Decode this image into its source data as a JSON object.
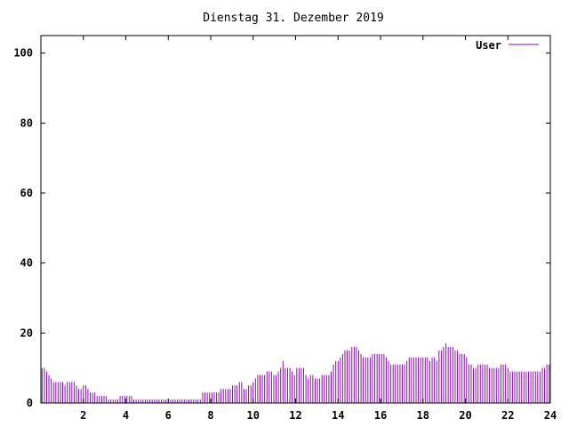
{
  "chart_data": {
    "type": "bar",
    "title": "Dienstag 31. Dezember 2019",
    "xlabel": "",
    "ylabel": "",
    "xlim": [
      0,
      24
    ],
    "ylim": [
      0,
      105
    ],
    "x_ticks": [
      2,
      4,
      6,
      8,
      10,
      12,
      14,
      16,
      18,
      20,
      22,
      24
    ],
    "x_tick_labels": [
      "2",
      "4",
      "6",
      "8",
      "10",
      "12",
      "14",
      "16",
      "18",
      "20",
      "22",
      "24"
    ],
    "y_ticks": [
      0,
      20,
      40,
      60,
      80,
      100
    ],
    "y_tick_labels": [
      "0",
      "20",
      "40",
      "60",
      "80",
      "100"
    ],
    "grid": false,
    "legend_position": "top-right",
    "bar_color": "#9400d3",
    "series": [
      {
        "name": "User",
        "values": [
          10,
          10,
          9,
          8,
          7,
          6,
          6,
          6,
          6,
          6,
          5,
          6,
          6,
          6,
          6,
          5,
          4,
          4,
          5,
          5,
          4,
          3,
          3,
          3,
          2,
          2,
          2,
          2,
          2,
          1,
          1,
          1,
          1,
          1,
          2,
          2,
          2,
          2,
          2,
          2,
          1,
          1,
          1,
          1,
          1,
          1,
          1,
          1,
          1,
          1,
          1,
          1,
          1,
          1,
          1,
          1,
          1,
          1,
          1,
          1,
          1,
          1,
          1,
          1,
          1,
          1,
          1,
          1,
          1,
          1,
          3,
          3,
          3,
          3,
          3,
          3,
          3,
          3,
          4,
          4,
          4,
          4,
          4,
          5,
          5,
          5,
          6,
          6,
          4,
          4,
          5,
          5,
          6,
          7,
          8,
          8,
          8,
          8,
          9,
          9,
          9,
          8,
          8,
          9,
          10,
          12,
          10,
          10,
          10,
          9,
          8,
          10,
          10,
          10,
          10,
          8,
          7,
          8,
          8,
          7,
          7,
          7,
          8,
          8,
          8,
          8,
          9,
          11,
          12,
          12,
          13,
          14,
          15,
          15,
          15,
          16,
          16,
          16,
          15,
          14,
          13,
          13,
          13,
          13,
          14,
          14,
          14,
          14,
          14,
          14,
          13,
          12,
          11,
          11,
          11,
          11,
          11,
          11,
          11,
          12,
          13,
          13,
          13,
          13,
          13,
          13,
          13,
          13,
          13,
          12,
          13,
          13,
          12,
          15,
          15,
          16,
          17,
          16,
          16,
          16,
          15,
          15,
          14,
          14,
          14,
          13,
          11,
          11,
          10,
          10,
          11,
          11,
          11,
          11,
          11,
          10,
          10,
          10,
          10,
          10,
          11,
          11,
          11,
          10,
          9,
          9,
          9,
          9,
          9,
          9,
          9,
          9,
          9,
          9,
          9,
          9,
          9,
          9,
          10,
          10,
          11,
          11
        ]
      }
    ]
  }
}
